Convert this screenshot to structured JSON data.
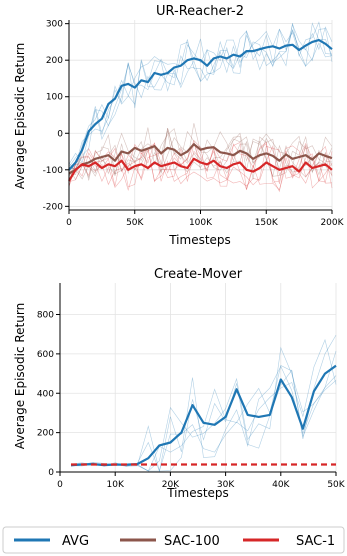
{
  "chart_data": [
    {
      "type": "line",
      "title": "UR-Reacher-2",
      "xlabel": "Timesteps",
      "ylabel": "Average Episodic Return",
      "xlim": [
        0,
        200000
      ],
      "ylim": [
        -210,
        310
      ],
      "xticks": [
        0,
        50000,
        100000,
        150000,
        200000
      ],
      "xtick_labels": [
        "0",
        "50K",
        "100K",
        "150K",
        "200K"
      ],
      "yticks": [
        -200,
        -100,
        0,
        100,
        200,
        300
      ],
      "ytick_labels": [
        "-200",
        "-100",
        "0",
        "100",
        "200",
        "300"
      ],
      "grid": true,
      "x": [
        0,
        5000,
        10000,
        15000,
        20000,
        25000,
        30000,
        35000,
        40000,
        45000,
        50000,
        55000,
        60000,
        65000,
        70000,
        75000,
        80000,
        85000,
        90000,
        95000,
        100000,
        105000,
        110000,
        115000,
        120000,
        125000,
        130000,
        135000,
        140000,
        145000,
        150000,
        155000,
        160000,
        165000,
        170000,
        175000,
        180000,
        185000,
        190000,
        195000,
        200000
      ],
      "series": [
        {
          "name": "AVG",
          "color": "#1f77b4",
          "values": [
            -100,
            -80,
            -45,
            5,
            25,
            40,
            80,
            95,
            130,
            135,
            125,
            145,
            140,
            165,
            160,
            165,
            180,
            185,
            200,
            205,
            200,
            185,
            205,
            210,
            205,
            215,
            210,
            225,
            225,
            230,
            235,
            238,
            232,
            240,
            242,
            228,
            240,
            250,
            255,
            245,
            230
          ]
        },
        {
          "name": "SAC-100",
          "color": "#8c564b",
          "values": [
            -110,
            -100,
            -85,
            -80,
            -70,
            -65,
            -60,
            -75,
            -50,
            -55,
            -40,
            -48,
            -42,
            -35,
            -55,
            -40,
            -45,
            -60,
            -50,
            -30,
            -45,
            -40,
            -38,
            -52,
            -55,
            -60,
            -48,
            -55,
            -70,
            -60,
            -55,
            -62,
            -75,
            -58,
            -70,
            -65,
            -60,
            -72,
            -55,
            -62,
            -68
          ]
        },
        {
          "name": "SAC-1",
          "color": "#d62728",
          "values": [
            -130,
            -100,
            -85,
            -90,
            -80,
            -95,
            -85,
            -90,
            -75,
            -100,
            -90,
            -85,
            -95,
            -80,
            -90,
            -85,
            -80,
            -90,
            -95,
            -70,
            -80,
            -85,
            -75,
            -90,
            -95,
            -85,
            -80,
            -100,
            -105,
            -95,
            -80,
            -90,
            -100,
            -95,
            -90,
            -105,
            -80,
            -95,
            -90,
            -85,
            -100
          ]
        }
      ]
    },
    {
      "type": "line",
      "title": "Create-Mover",
      "xlabel": "Timesteps",
      "ylabel": "Average Episodic Return",
      "xlim": [
        0,
        50000
      ],
      "ylim": [
        0,
        960
      ],
      "xticks": [
        0,
        10000,
        20000,
        30000,
        40000,
        50000
      ],
      "xtick_labels": [
        "0",
        "10K",
        "20K",
        "30K",
        "40K",
        "50K"
      ],
      "yticks": [
        0,
        200,
        400,
        600,
        800
      ],
      "ytick_labels": [
        "0",
        "200",
        "400",
        "600",
        "800"
      ],
      "grid": true,
      "x": [
        2000,
        4000,
        6000,
        8000,
        10000,
        12000,
        14000,
        16000,
        18000,
        20000,
        22000,
        24000,
        26000,
        28000,
        30000,
        32000,
        34000,
        36000,
        38000,
        40000,
        42000,
        44000,
        46000,
        48000,
        50000
      ],
      "series": [
        {
          "name": "AVG",
          "color": "#1f77b4",
          "values": [
            35,
            38,
            40,
            35,
            38,
            37,
            40,
            70,
            135,
            150,
            200,
            340,
            250,
            240,
            280,
            420,
            290,
            280,
            290,
            470,
            380,
            220,
            410,
            500,
            540
          ]
        },
        {
          "name": "SAC-1",
          "color": "#d62728",
          "values": [
            38,
            38,
            38,
            38,
            38,
            38,
            38,
            38,
            38,
            38,
            38,
            38,
            38,
            38,
            38,
            38,
            38,
            38,
            38,
            38,
            38,
            38,
            38,
            38,
            38
          ]
        }
      ]
    }
  ],
  "legend": {
    "placement": "bottom",
    "entries": [
      {
        "label": "AVG",
        "color": "#1f77b4"
      },
      {
        "label": "SAC-100",
        "color": "#8c564b"
      },
      {
        "label": "SAC-1",
        "color": "#d62728"
      }
    ]
  }
}
